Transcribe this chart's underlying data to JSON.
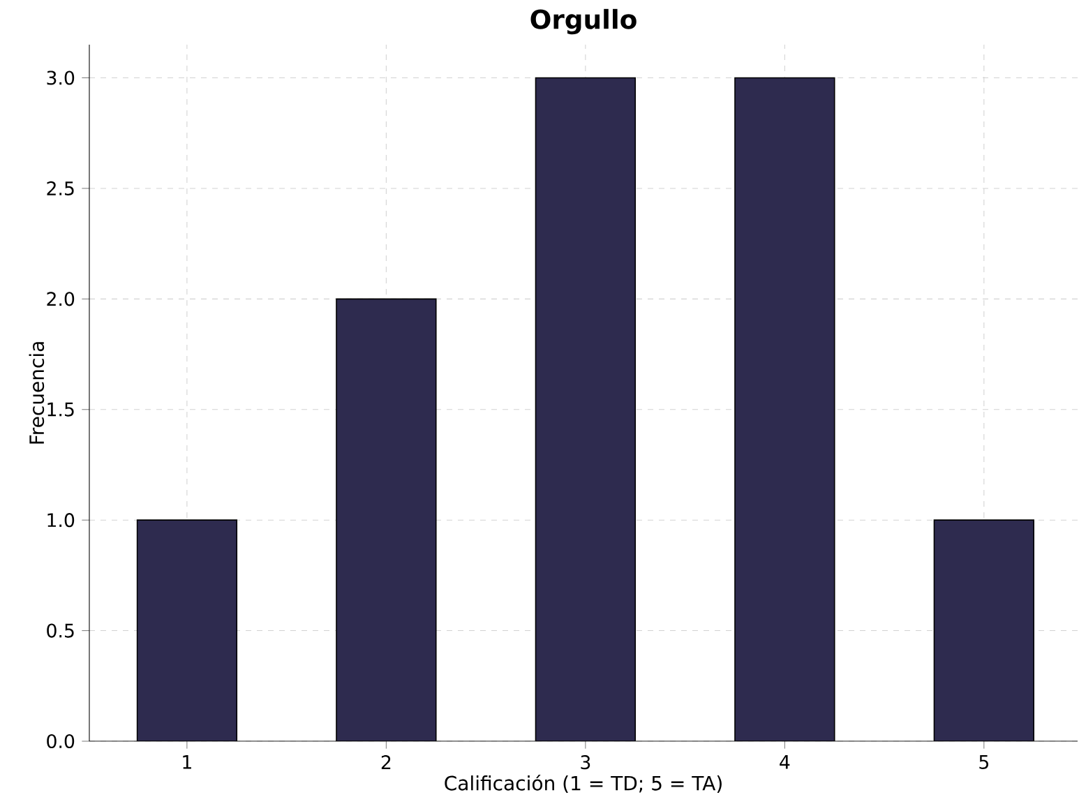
{
  "chart_data": {
    "type": "bar",
    "title": "Orgullo",
    "xlabel": "Calificación (1 = TD; 5 = TA)",
    "ylabel": "Frecuencia",
    "categories": [
      "1",
      "2",
      "3",
      "4",
      "5"
    ],
    "values": [
      1,
      2,
      3,
      3,
      1
    ],
    "color": "#2e2b4f",
    "ylim": [
      0,
      3.15
    ],
    "yticks": [
      {
        "value": 0,
        "label": "0.0"
      },
      {
        "value": 0.5,
        "label": "0.5"
      },
      {
        "value": 1,
        "label": "1.0"
      },
      {
        "value": 1.5,
        "label": "1.5"
      },
      {
        "value": 2,
        "label": "2.0"
      },
      {
        "value": 2.5,
        "label": "2.5"
      },
      {
        "value": 3,
        "label": "3.0"
      }
    ],
    "grid": true
  }
}
